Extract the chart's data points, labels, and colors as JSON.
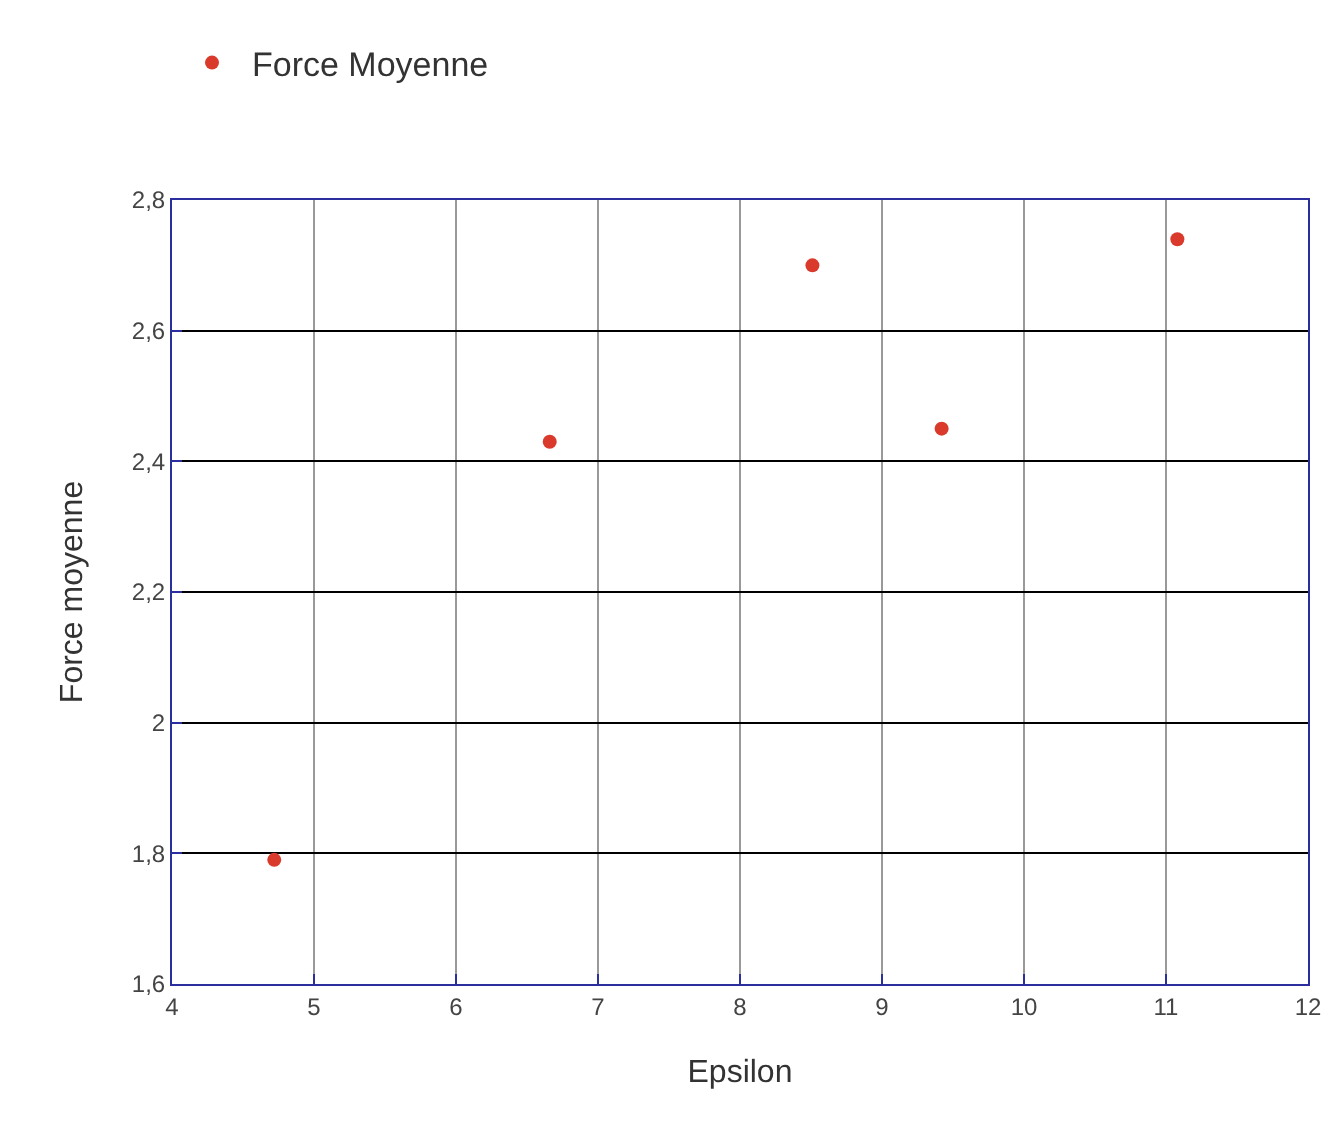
{
  "chart_data": {
    "type": "scatter",
    "xlabel": "Epsilon",
    "ylabel": "Force moyenne",
    "series": [
      {
        "name": "Force Moyenne",
        "color": "#d93a2b",
        "x": [
          4.72,
          6.66,
          8.51,
          9.42,
          11.08
        ],
        "values": [
          1.79,
          2.43,
          2.7,
          2.45,
          2.74
        ]
      }
    ],
    "xlim": [
      4,
      12
    ],
    "xticks": [
      4,
      5,
      6,
      7,
      8,
      9,
      10,
      11,
      12
    ],
    "ylim": [
      1.6,
      2.8
    ],
    "yticks": [
      {
        "value": 1.6,
        "label": "1,6"
      },
      {
        "value": 1.8,
        "label": "1,8"
      },
      2,
      {
        "value": 2.2,
        "label": "2,2"
      },
      {
        "value": 2.4,
        "label": "2,4"
      },
      {
        "value": 2.6,
        "label": "2,6"
      },
      {
        "value": 2.8,
        "label": "2,8"
      }
    ],
    "grid": true,
    "legend": "top left",
    "marker": "circle"
  }
}
